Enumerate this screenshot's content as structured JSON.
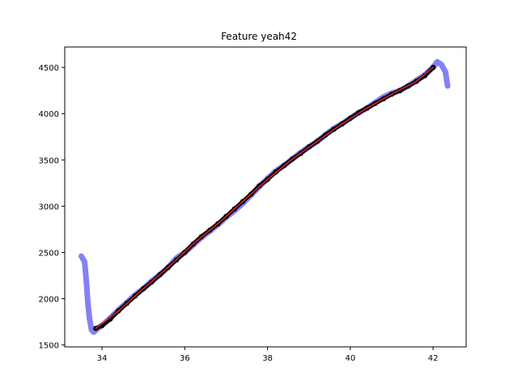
{
  "chart_data": {
    "type": "line",
    "title": "Feature yeah42",
    "xlabel": "",
    "ylabel": "",
    "xlim": [
      33.1,
      42.8
    ],
    "ylim": [
      1480,
      4720
    ],
    "xticks": [
      34,
      36,
      38,
      40,
      42
    ],
    "yticks": [
      1500,
      2000,
      2500,
      3000,
      3500,
      4000,
      4500
    ],
    "grid": false,
    "series": [
      {
        "style": "thick",
        "color": "#7b7bf3",
        "points": [
          [
            33.5,
            2460
          ],
          [
            33.58,
            2400
          ],
          [
            33.62,
            2200
          ],
          [
            33.66,
            1950
          ],
          [
            33.7,
            1780
          ],
          [
            33.75,
            1660
          ],
          [
            33.8,
            1640
          ],
          [
            33.9,
            1680
          ],
          [
            34.0,
            1710
          ],
          [
            34.2,
            1790
          ],
          [
            34.4,
            1880
          ],
          [
            34.6,
            1960
          ],
          [
            34.8,
            2040
          ],
          [
            35.0,
            2110
          ],
          [
            35.2,
            2190
          ],
          [
            35.4,
            2260
          ],
          [
            35.6,
            2340
          ],
          [
            35.8,
            2440
          ],
          [
            36.0,
            2500
          ],
          [
            36.2,
            2580
          ],
          [
            36.4,
            2660
          ],
          [
            36.6,
            2730
          ],
          [
            36.8,
            2800
          ],
          [
            37.0,
            2880
          ],
          [
            37.2,
            2950
          ],
          [
            37.4,
            3030
          ],
          [
            37.6,
            3120
          ],
          [
            37.8,
            3210
          ],
          [
            38.0,
            3300
          ],
          [
            38.2,
            3380
          ],
          [
            38.4,
            3440
          ],
          [
            38.6,
            3510
          ],
          [
            38.8,
            3580
          ],
          [
            39.0,
            3640
          ],
          [
            39.2,
            3700
          ],
          [
            39.4,
            3770
          ],
          [
            39.6,
            3840
          ],
          [
            39.8,
            3890
          ],
          [
            40.0,
            3950
          ],
          [
            40.2,
            4010
          ],
          [
            40.4,
            4060
          ],
          [
            40.6,
            4120
          ],
          [
            40.8,
            4180
          ],
          [
            41.0,
            4220
          ],
          [
            41.2,
            4250
          ],
          [
            41.4,
            4300
          ],
          [
            41.6,
            4360
          ],
          [
            41.8,
            4420
          ],
          [
            42.0,
            4500
          ],
          [
            42.1,
            4560
          ],
          [
            42.2,
            4530
          ],
          [
            42.3,
            4450
          ],
          [
            42.35,
            4300
          ]
        ]
      },
      {
        "style": "markers",
        "color": "#000000",
        "points": [
          [
            33.85,
            1680
          ],
          [
            34.0,
            1710
          ],
          [
            34.2,
            1780
          ],
          [
            34.4,
            1870
          ],
          [
            34.6,
            1950
          ],
          [
            34.8,
            2030
          ],
          [
            35.0,
            2110
          ],
          [
            35.2,
            2180
          ],
          [
            35.4,
            2260
          ],
          [
            35.6,
            2340
          ],
          [
            35.8,
            2420
          ],
          [
            36.0,
            2500
          ],
          [
            36.2,
            2590
          ],
          [
            36.4,
            2670
          ],
          [
            36.6,
            2740
          ],
          [
            36.8,
            2810
          ],
          [
            37.0,
            2890
          ],
          [
            37.2,
            2970
          ],
          [
            37.4,
            3050
          ],
          [
            37.6,
            3130
          ],
          [
            37.8,
            3220
          ],
          [
            38.0,
            3290
          ],
          [
            38.2,
            3370
          ],
          [
            38.4,
            3440
          ],
          [
            38.6,
            3510
          ],
          [
            38.8,
            3570
          ],
          [
            39.0,
            3640
          ],
          [
            39.2,
            3700
          ],
          [
            39.4,
            3770
          ],
          [
            39.6,
            3830
          ],
          [
            39.8,
            3890
          ],
          [
            40.0,
            3950
          ],
          [
            40.2,
            4010
          ],
          [
            40.4,
            4060
          ],
          [
            40.6,
            4110
          ],
          [
            40.8,
            4160
          ],
          [
            41.0,
            4210
          ],
          [
            41.2,
            4250
          ],
          [
            41.4,
            4300
          ],
          [
            41.6,
            4350
          ],
          [
            41.8,
            4410
          ],
          [
            42.0,
            4500
          ]
        ]
      },
      {
        "style": "thin",
        "color": "#d62728",
        "points": [
          [
            33.85,
            1680
          ],
          [
            34.4,
            1870
          ],
          [
            35.0,
            2110
          ],
          [
            35.6,
            2340
          ],
          [
            36.2,
            2590
          ],
          [
            36.8,
            2810
          ],
          [
            37.4,
            3050
          ],
          [
            38.0,
            3290
          ],
          [
            38.6,
            3510
          ],
          [
            39.2,
            3700
          ],
          [
            39.8,
            3890
          ],
          [
            40.4,
            4060
          ],
          [
            41.0,
            4210
          ],
          [
            41.6,
            4350
          ],
          [
            42.0,
            4500
          ]
        ]
      }
    ]
  }
}
